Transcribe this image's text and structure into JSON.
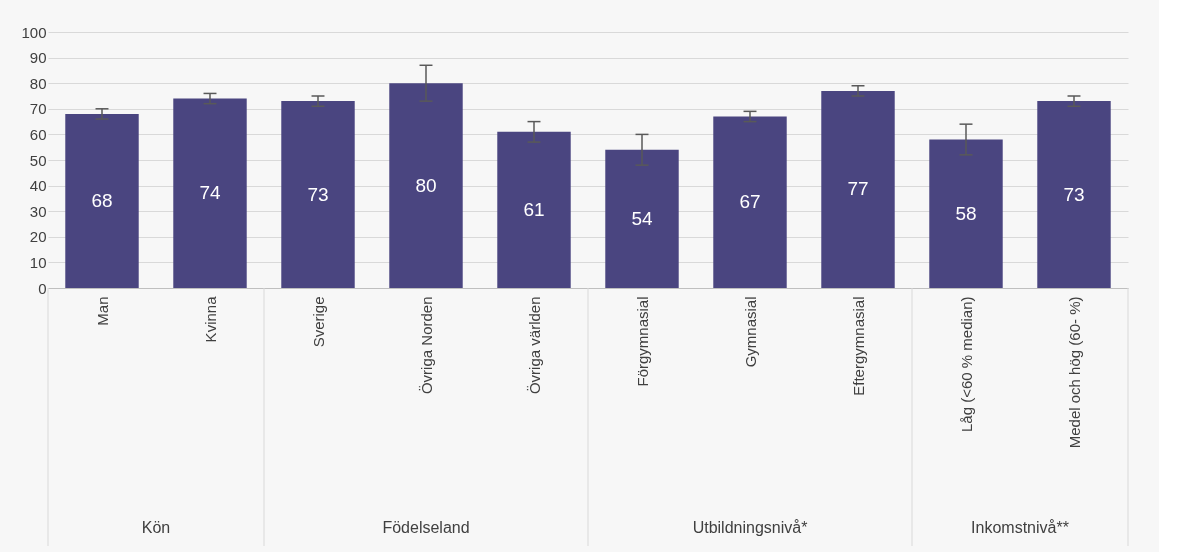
{
  "chart_data": {
    "type": "bar",
    "categories": [
      "Man",
      "Kvinna",
      "Sverige",
      "Övriga Norden",
      "Övriga världen",
      "Förgymnasial",
      "Gymnasial",
      "Eftergymnasial",
      "Låg (<60 % median)",
      "Medel och hög (60- %)"
    ],
    "values": [
      68,
      74,
      73,
      80,
      61,
      54,
      67,
      77,
      58,
      73
    ],
    "color": "#4a4580",
    "errors": [
      [
        66,
        70
      ],
      [
        72,
        76
      ],
      [
        71,
        75
      ],
      [
        73,
        87
      ],
      [
        57,
        65
      ],
      [
        48,
        60
      ],
      [
        65,
        69
      ],
      [
        75,
        79
      ],
      [
        52,
        64
      ],
      [
        71,
        75
      ]
    ],
    "data_labels": true,
    "ylim": [
      0,
      100
    ],
    "yticks": [
      0,
      10,
      20,
      30,
      40,
      50,
      60,
      70,
      80,
      90,
      100
    ],
    "grid": "y",
    "annotations": [
      "Kön",
      "Födelseland",
      "Utbildningsnivå*",
      "Inkomstnivå**"
    ]
  }
}
